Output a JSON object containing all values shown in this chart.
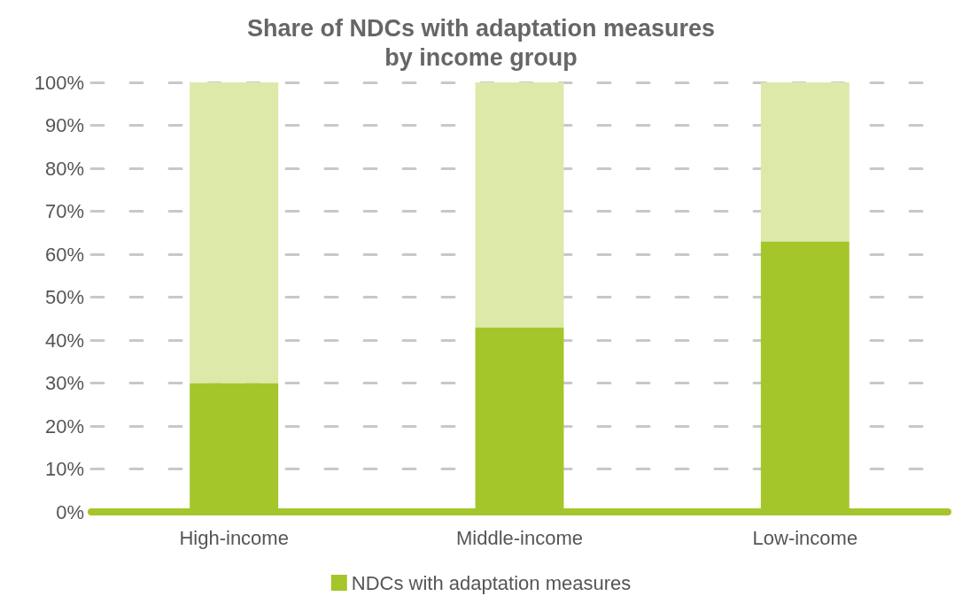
{
  "chart_data": {
    "type": "bar",
    "title": "Share of NDCs with adaptation measures\nby income group",
    "categories": [
      "High-income",
      "Middle-income",
      "Low-income"
    ],
    "stacked": true,
    "series": [
      {
        "name": "NDCs with adaptation measures",
        "color": "#a4c62b",
        "values": [
          30,
          43,
          63
        ]
      },
      {
        "color": "#dde9a9",
        "values": [
          70,
          57,
          37
        ]
      }
    ],
    "ylim": [
      0,
      100
    ],
    "yticks": [
      {
        "value": 0,
        "label": "0%"
      },
      {
        "value": 10,
        "label": "10%"
      },
      {
        "value": 20,
        "label": "20%"
      },
      {
        "value": 30,
        "label": "30%"
      },
      {
        "value": 40,
        "label": "40%"
      },
      {
        "value": 50,
        "label": "50%"
      },
      {
        "value": 60,
        "label": "60%"
      },
      {
        "value": 70,
        "label": "70%"
      },
      {
        "value": 80,
        "label": "80%"
      },
      {
        "value": 90,
        "label": "90%"
      },
      {
        "value": 100,
        "label": "100%"
      }
    ],
    "grid": "y",
    "legend": "bottom"
  }
}
